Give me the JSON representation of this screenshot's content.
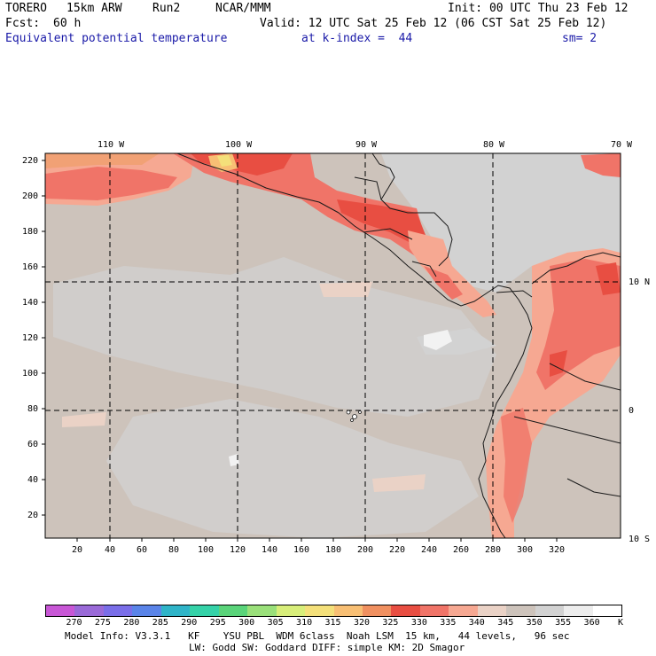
{
  "header": {
    "model": "TORERO",
    "resolution": "15km ARW",
    "run": "Run2",
    "agency": "NCAR/MMM",
    "init": "Init: 00 UTC Thu 23 Feb 12",
    "fcst_label": "Fcst:",
    "fcst_value": "60 h",
    "valid": "Valid: 12 UTC Sat 25 Feb 12 (06 CST Sat 25 Feb 12)",
    "field": "Equivalent potential temperature",
    "level": "at k-index =  44",
    "smoothing": "sm= 2"
  },
  "map": {
    "top_lon_labels": [
      "110 W",
      "100 W",
      "90 W",
      "80 W",
      "70 W"
    ],
    "right_lat_labels": [
      "10 N",
      "0",
      "10 S"
    ],
    "left_y_labels": [
      "220",
      "200",
      "180",
      "160",
      "140",
      "120",
      "100",
      "80",
      "60",
      "40",
      "20"
    ],
    "bottom_x_labels": [
      "20",
      "40",
      "60",
      "80",
      "100",
      "120",
      "140",
      "160",
      "180",
      "200",
      "220",
      "240",
      "260",
      "280",
      "300",
      "320"
    ],
    "background_color": "#cdc3bb",
    "coast_color": "#1a1a1a",
    "grid_color": "#000000"
  },
  "colorbar": {
    "levels": [
      "270",
      "275",
      "280",
      "285",
      "290",
      "295",
      "300",
      "305",
      "310",
      "315",
      "320",
      "325",
      "330",
      "335",
      "340",
      "345",
      "350",
      "355",
      "360"
    ],
    "unit": "K",
    "colors": [
      "#c857d6",
      "#9a6ad8",
      "#7a6ee8",
      "#5a84e8",
      "#2fb4c8",
      "#35d2a8",
      "#5ad47a",
      "#9ae07a",
      "#d8ee7a",
      "#f4e07a",
      "#f8bf74",
      "#f09060",
      "#e84e42",
      "#f07468",
      "#f6a892",
      "#ead2c6",
      "#cdc3bb",
      "#d2d2d2",
      "#ededed",
      "#ffffff"
    ]
  },
  "footer": {
    "line1": "Model Info: V3.3.1   KF    YSU PBL  WDM 6class  Noah LSM  15 km,   44 levels,   96 sec",
    "line2": "LW: Godd SW: Goddard DIFF: simple KM: 2D Smagor"
  }
}
